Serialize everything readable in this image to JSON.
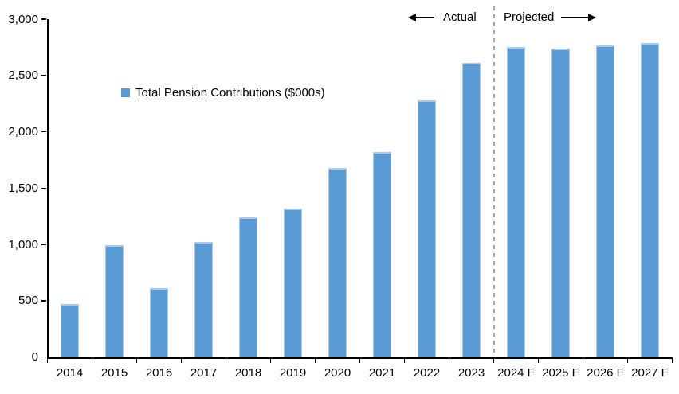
{
  "chart_data": {
    "type": "bar",
    "title": "",
    "xlabel": "",
    "ylabel": "",
    "categories": [
      "2014",
      "2015",
      "2016",
      "2017",
      "2018",
      "2019",
      "2020",
      "2021",
      "2022",
      "2023",
      "2024 F",
      "2025 F",
      "2026 F",
      "2027 F"
    ],
    "values": [
      470,
      990,
      610,
      1020,
      1240,
      1320,
      1680,
      1820,
      2280,
      2610,
      2750,
      2740,
      2765,
      2790
    ],
    "series_name": "Total Pension Contributions ($000s)",
    "ylim": [
      0,
      3000
    ],
    "yticks": [
      0,
      500,
      1000,
      1500,
      2000,
      2500,
      3000
    ],
    "ytick_labels": [
      "0",
      "500",
      "1,000",
      "1,500",
      "2,000",
      "2,500",
      "3,000"
    ],
    "grid": false,
    "legend_label": "Total Pension Contributions ($000s)",
    "legend_position": "inside-upper-left",
    "annotations": {
      "actual_label": "Actual",
      "projected_label": "Projected",
      "divider_before_category": "2024 F"
    },
    "colors": {
      "bar_fill": "#5B9BD5",
      "bar_border": "#A9CBE9",
      "divider": "#A6A6A6",
      "axis": "#000000",
      "text": "#000000",
      "background": "#FFFFFF"
    }
  }
}
